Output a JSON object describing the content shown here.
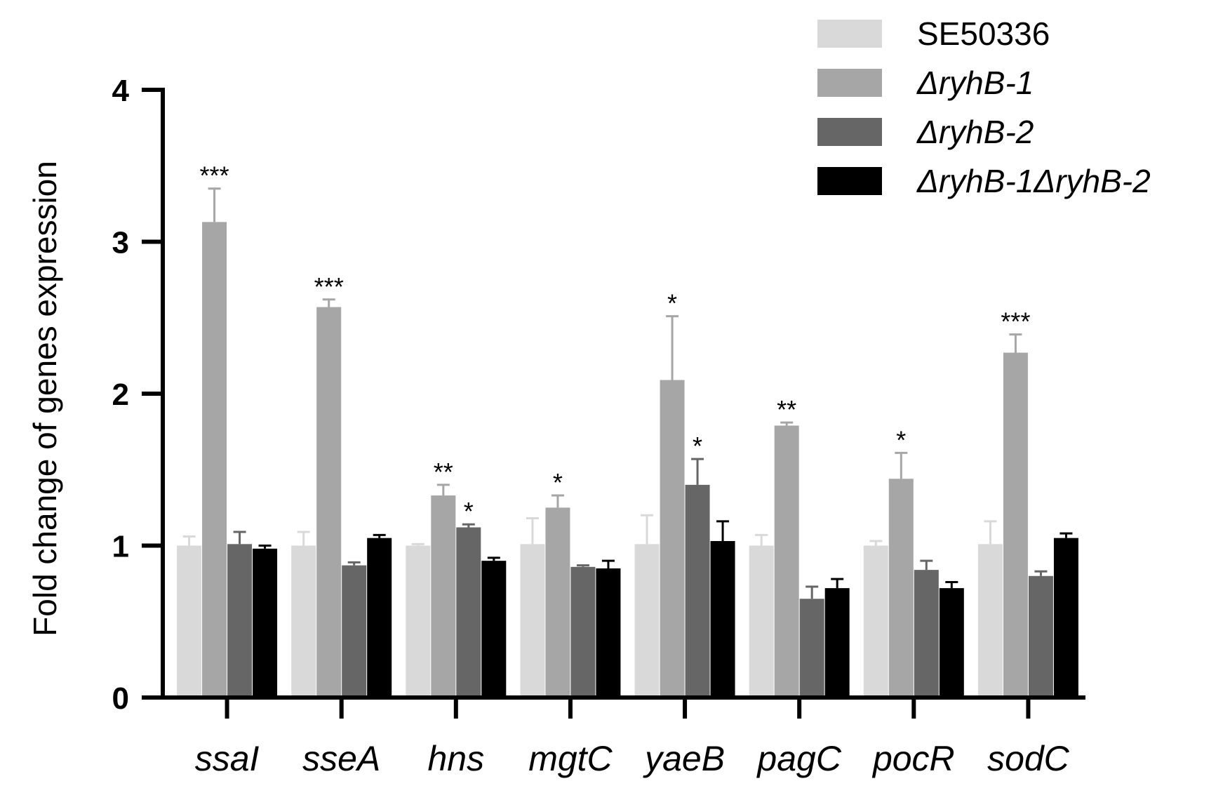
{
  "chart_data": {
    "type": "bar",
    "ylabel": "Fold change of genes expression",
    "xlabel": "",
    "ylim": [
      0,
      4
    ],
    "yticks": [
      "0",
      "1",
      "2",
      "3",
      "4"
    ],
    "categories": [
      "ssaI",
      "sseA",
      "hns",
      "mgtC",
      "yaeB",
      "pagC",
      "pocR",
      "sodC"
    ],
    "legend_position": "top-right",
    "grid": false,
    "series": [
      {
        "name": "SE50336",
        "color": "#d9d9d9",
        "values": [
          1.0,
          1.0,
          1.0,
          1.01,
          1.01,
          1.0,
          1.0,
          1.01
        ],
        "errors": [
          0.06,
          0.09,
          0.01,
          0.17,
          0.19,
          0.07,
          0.03,
          0.15
        ],
        "sig": [
          "",
          "",
          "",
          "",
          "",
          "",
          "",
          ""
        ]
      },
      {
        "name": "ΔryhB-1",
        "color": "#a6a6a6",
        "values": [
          3.13,
          2.57,
          1.33,
          1.25,
          2.09,
          1.79,
          1.44,
          2.27
        ],
        "errors": [
          0.22,
          0.05,
          0.07,
          0.08,
          0.42,
          0.02,
          0.17,
          0.12
        ],
        "sig": [
          "***",
          "***",
          "**",
          "*",
          "*",
          "**",
          "*",
          "***"
        ]
      },
      {
        "name": "ΔryhB-2",
        "color": "#666666",
        "values": [
          1.01,
          0.87,
          1.12,
          0.86,
          1.4,
          0.65,
          0.84,
          0.8
        ],
        "errors": [
          0.08,
          0.02,
          0.02,
          0.01,
          0.17,
          0.08,
          0.06,
          0.03
        ],
        "sig": [
          "",
          "",
          "*",
          "",
          "*",
          "",
          "",
          ""
        ]
      },
      {
        "name": "ΔryhB-1ΔryhB-2",
        "color": "#000000",
        "values": [
          0.98,
          1.05,
          0.9,
          0.85,
          1.03,
          0.72,
          0.72,
          1.05
        ],
        "errors": [
          0.02,
          0.02,
          0.02,
          0.05,
          0.13,
          0.06,
          0.04,
          0.03
        ],
        "sig": [
          "",
          "",
          "",
          "",
          "",
          "",
          "",
          ""
        ]
      }
    ]
  }
}
